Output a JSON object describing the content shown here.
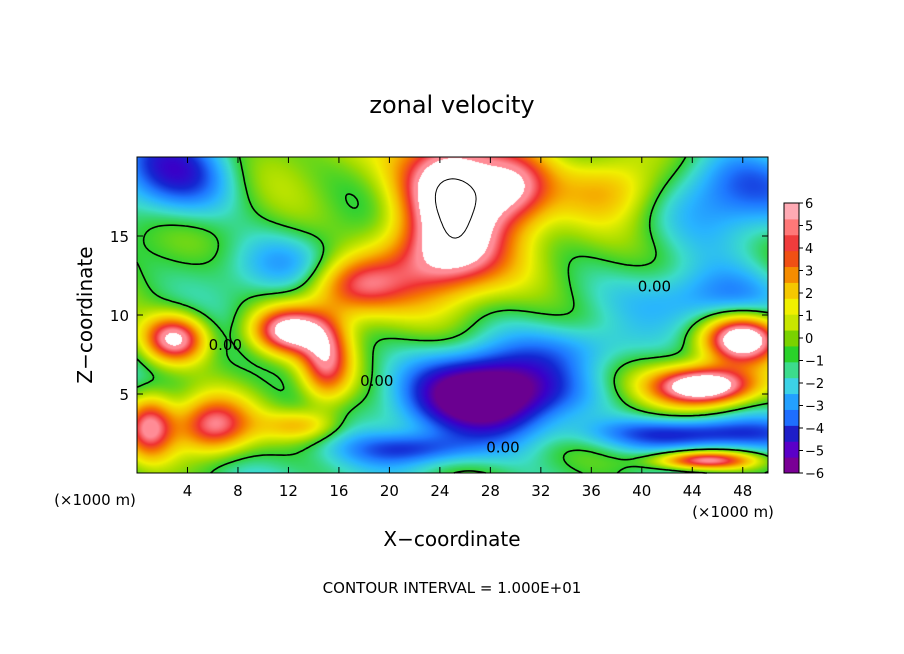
{
  "chart_data": {
    "type": "heatmap",
    "title": "zonal velocity",
    "xlabel": "X−coordinate",
    "ylabel": "Z−coordinate",
    "x_unit_left": "(×1000 m)",
    "x_unit_right": "(×1000 m)",
    "footer": "CONTOUR INTERVAL = 1.000E+01",
    "xlim": [
      0,
      50
    ],
    "ylim": [
      0,
      20
    ],
    "x_ticks": [
      4,
      8,
      12,
      16,
      20,
      24,
      28,
      32,
      36,
      40,
      44,
      48
    ],
    "y_ticks": [
      5,
      10,
      15
    ],
    "colorbar": {
      "min": -6,
      "max": 6,
      "ticks": [
        6,
        5,
        4,
        3,
        2,
        1,
        0,
        -1,
        -2,
        -3,
        -4,
        -5,
        -6
      ],
      "colors": [
        "#7a0096",
        "#5b00c8",
        "#1e1ec8",
        "#1e6eff",
        "#23a0ff",
        "#3cd2e6",
        "#3cdc8c",
        "#2ad22a",
        "#7ad200",
        "#c8e600",
        "#f0f000",
        "#f5c800",
        "#f58c00",
        "#f05014",
        "#f03c3c",
        "#ff7878",
        "#ffaab4"
      ]
    },
    "contour_labels": [
      {
        "text": "0.00",
        "x": 41,
        "y": 11.5
      },
      {
        "text": "0.00",
        "x": 7,
        "y": 7.8
      },
      {
        "text": "0.00",
        "x": 19,
        "y": 5.5
      },
      {
        "text": "0.00",
        "x": 29,
        "y": 1.3
      }
    ],
    "colormap_stops": [
      [
        -6,
        "#6a0090"
      ],
      [
        -5,
        "#3a00c8"
      ],
      [
        -4,
        "#1428d2"
      ],
      [
        -3,
        "#1e78ff"
      ],
      [
        -2,
        "#28b4ff"
      ],
      [
        -1,
        "#3cdcc8"
      ],
      [
        0,
        "#32d232"
      ],
      [
        1,
        "#a0dc00"
      ],
      [
        2,
        "#f0f000"
      ],
      [
        3,
        "#f5be00"
      ],
      [
        4,
        "#f57800"
      ],
      [
        5,
        "#f03232"
      ],
      [
        6,
        "#ff8c96"
      ]
    ],
    "blobs": [
      {
        "cx": 3,
        "cy": 19,
        "sx": 5,
        "sy": 3,
        "a": -5
      },
      {
        "cx": 47,
        "cy": 18,
        "sx": 6,
        "sy": 3,
        "a": -4
      },
      {
        "cx": 46,
        "cy": 11,
        "sx": 6,
        "sy": 2,
        "a": -3
      },
      {
        "cx": 14,
        "cy": 13,
        "sx": 8,
        "sy": 2,
        "a": -2.5
      },
      {
        "cx": 25,
        "cy": 18,
        "sx": 4,
        "sy": 3.5,
        "a": 9
      },
      {
        "cx": 30,
        "cy": 18,
        "sx": 3,
        "sy": 2.5,
        "a": 5
      },
      {
        "cx": 38,
        "cy": 18,
        "sx": 4,
        "sy": 2,
        "a": 2.5
      },
      {
        "cx": 24,
        "cy": 13.5,
        "sx": 5,
        "sy": 2.5,
        "a": 6
      },
      {
        "cx": 17,
        "cy": 12,
        "sx": 4,
        "sy": 2,
        "a": 6
      },
      {
        "cx": 12,
        "cy": 9,
        "sx": 3,
        "sy": 1.5,
        "a": 7
      },
      {
        "cx": 15,
        "cy": 7,
        "sx": 2,
        "sy": 2.5,
        "a": 5
      },
      {
        "cx": 6,
        "cy": 3,
        "sx": 3,
        "sy": 1.8,
        "a": 6
      },
      {
        "cx": 1,
        "cy": 3,
        "sx": 2,
        "sy": 2,
        "a": 6
      },
      {
        "cx": 3,
        "cy": 8.5,
        "sx": 2.5,
        "sy": 1.5,
        "a": 7
      },
      {
        "cx": 13,
        "cy": 3,
        "sx": 3,
        "sy": 1,
        "a": 3
      },
      {
        "cx": 28,
        "cy": 5,
        "sx": 6,
        "sy": 2.5,
        "a": -8
      },
      {
        "cx": 44,
        "cy": 2.5,
        "sx": 8,
        "sy": 1,
        "a": -4
      },
      {
        "cx": 45,
        "cy": 5.5,
        "sx": 4,
        "sy": 1.2,
        "a": 9
      },
      {
        "cx": 48,
        "cy": 8.5,
        "sx": 3,
        "sy": 1.5,
        "a": 8
      },
      {
        "cx": 45,
        "cy": 0.8,
        "sx": 4,
        "sy": 0.6,
        "a": 7
      },
      {
        "cx": 22,
        "cy": 1.5,
        "sx": 5,
        "sy": 1,
        "a": -3
      },
      {
        "cx": 36,
        "cy": 8,
        "sx": 5,
        "sy": 1.5,
        "a": -1.5
      }
    ]
  }
}
